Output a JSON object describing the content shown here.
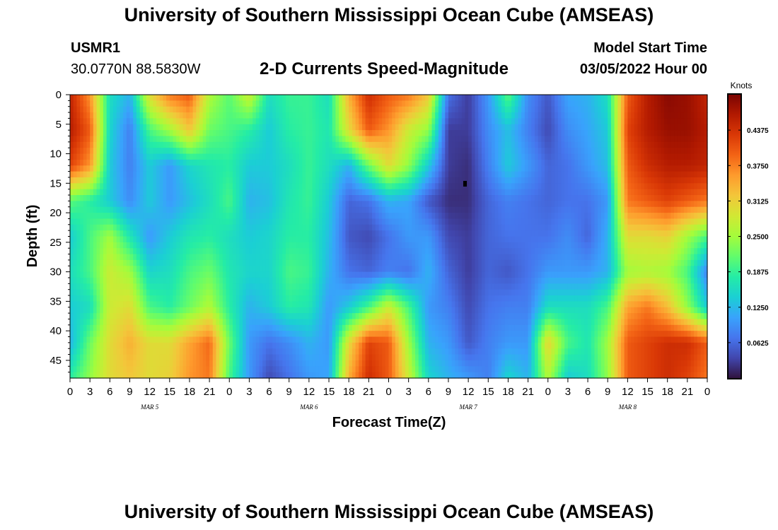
{
  "header": {
    "title": "University of Southern Mississippi Ocean Cube (AMSEAS)",
    "station_id": "USMR1",
    "location": "30.0770N  88.5830W",
    "subtitle": "2-D Currents Speed-Magnitude",
    "model_start_label": "Model Start Time",
    "model_start_value": "03/05/2022 Hour 00"
  },
  "footer": {
    "title": "University of Southern Mississippi Ocean Cube (AMSEAS)"
  },
  "colors": {
    "cmap": [
      "#30123b",
      "#4145ab",
      "#4675ed",
      "#39a2fc",
      "#1bcfd4",
      "#24eca6",
      "#61fc6c",
      "#a4fc3b",
      "#d1e834",
      "#f3c63a",
      "#fe9b2d",
      "#f36315",
      "#d93806",
      "#b11901",
      "#7a0402"
    ]
  },
  "chart_data": {
    "type": "heatmap",
    "title": "2-D Currents Speed-Magnitude",
    "xlabel": "Forecast Time(Z)",
    "ylabel": "Depth (ft)",
    "x_hours": [
      0,
      96
    ],
    "y_depth_ft": [
      0,
      48
    ],
    "vmin": 0.0,
    "vmax": 0.5,
    "x_ticks": [
      "0",
      "3",
      "6",
      "9",
      "12",
      "15",
      "18",
      "21",
      "0",
      "3",
      "6",
      "9",
      "12",
      "15",
      "18",
      "21",
      "0",
      "3",
      "6",
      "9",
      "12",
      "15",
      "18",
      "21",
      "0",
      "3",
      "6",
      "9",
      "12",
      "15",
      "18",
      "21",
      "0"
    ],
    "day_labels": [
      {
        "hour": 12,
        "label": "MAR 5"
      },
      {
        "hour": 36,
        "label": "MAR 6"
      },
      {
        "hour": 60,
        "label": "MAR 7"
      },
      {
        "hour": 84,
        "label": "MAR 8"
      }
    ],
    "y_ticks": [
      0,
      5,
      10,
      15,
      20,
      25,
      30,
      35,
      40,
      45
    ],
    "colorbar": {
      "label": "Knots",
      "ticks": [
        "0.0625",
        "0.1250",
        "0.1875",
        "0.2500",
        "0.3125",
        "0.3750",
        "0.4375"
      ]
    },
    "grid_depths_ft": [
      0,
      6,
      12,
      18,
      24,
      30,
      36,
      42,
      48
    ],
    "grid_hours": [
      0,
      3,
      6,
      9,
      12,
      15,
      18,
      21,
      24,
      27,
      30,
      33,
      36,
      39,
      42,
      45,
      48,
      51,
      54,
      57,
      60,
      63,
      66,
      69,
      72,
      75,
      78,
      81,
      84,
      87,
      90,
      93,
      96
    ],
    "speed_knots": [
      [
        0.45,
        0.36,
        0.16,
        0.12,
        0.3,
        0.38,
        0.4,
        0.26,
        0.21,
        0.28,
        0.16,
        0.19,
        0.19,
        0.16,
        0.34,
        0.44,
        0.4,
        0.38,
        0.32,
        0.07,
        0.03,
        0.1,
        0.21,
        0.09,
        0.05,
        0.11,
        0.12,
        0.16,
        0.4,
        0.46,
        0.49,
        0.48,
        0.45
      ],
      [
        0.46,
        0.4,
        0.15,
        0.08,
        0.2,
        0.25,
        0.32,
        0.22,
        0.2,
        0.18,
        0.14,
        0.18,
        0.19,
        0.17,
        0.3,
        0.4,
        0.36,
        0.28,
        0.24,
        0.03,
        0.03,
        0.09,
        0.13,
        0.08,
        0.04,
        0.09,
        0.11,
        0.14,
        0.42,
        0.46,
        0.48,
        0.48,
        0.46
      ],
      [
        0.42,
        0.36,
        0.14,
        0.08,
        0.14,
        0.1,
        0.15,
        0.17,
        0.18,
        0.14,
        0.14,
        0.16,
        0.19,
        0.16,
        0.12,
        0.22,
        0.3,
        0.24,
        0.14,
        0.03,
        0.02,
        0.08,
        0.14,
        0.1,
        0.06,
        0.07,
        0.1,
        0.13,
        0.4,
        0.44,
        0.46,
        0.46,
        0.45
      ],
      [
        0.21,
        0.18,
        0.14,
        0.09,
        0.14,
        0.1,
        0.13,
        0.16,
        0.2,
        0.12,
        0.13,
        0.17,
        0.19,
        0.14,
        0.06,
        0.07,
        0.12,
        0.11,
        0.05,
        0.02,
        0.02,
        0.06,
        0.08,
        0.07,
        0.06,
        0.07,
        0.07,
        0.1,
        0.38,
        0.4,
        0.42,
        0.4,
        0.38
      ],
      [
        0.14,
        0.2,
        0.25,
        0.17,
        0.1,
        0.14,
        0.17,
        0.18,
        0.16,
        0.14,
        0.15,
        0.18,
        0.18,
        0.13,
        0.05,
        0.04,
        0.07,
        0.1,
        0.1,
        0.04,
        0.03,
        0.06,
        0.07,
        0.07,
        0.07,
        0.09,
        0.06,
        0.12,
        0.3,
        0.3,
        0.31,
        0.25,
        0.2
      ],
      [
        0.16,
        0.2,
        0.28,
        0.25,
        0.15,
        0.16,
        0.2,
        0.22,
        0.17,
        0.15,
        0.15,
        0.2,
        0.19,
        0.12,
        0.07,
        0.06,
        0.08,
        0.07,
        0.12,
        0.06,
        0.03,
        0.06,
        0.05,
        0.07,
        0.1,
        0.1,
        0.1,
        0.12,
        0.25,
        0.26,
        0.25,
        0.2,
        0.08
      ],
      [
        0.14,
        0.16,
        0.28,
        0.3,
        0.2,
        0.18,
        0.22,
        0.26,
        0.18,
        0.12,
        0.14,
        0.18,
        0.17,
        0.1,
        0.14,
        0.2,
        0.28,
        0.2,
        0.1,
        0.08,
        0.04,
        0.07,
        0.08,
        0.08,
        0.16,
        0.16,
        0.16,
        0.2,
        0.35,
        0.38,
        0.33,
        0.24,
        0.14
      ],
      [
        0.12,
        0.22,
        0.3,
        0.34,
        0.3,
        0.3,
        0.35,
        0.39,
        0.22,
        0.1,
        0.07,
        0.09,
        0.12,
        0.1,
        0.3,
        0.42,
        0.4,
        0.25,
        0.12,
        0.1,
        0.05,
        0.08,
        0.1,
        0.1,
        0.31,
        0.2,
        0.17,
        0.25,
        0.4,
        0.42,
        0.44,
        0.44,
        0.4
      ],
      [
        0.18,
        0.24,
        0.3,
        0.32,
        0.3,
        0.31,
        0.36,
        0.38,
        0.2,
        0.1,
        0.04,
        0.07,
        0.1,
        0.11,
        0.34,
        0.44,
        0.4,
        0.28,
        0.15,
        0.12,
        0.1,
        0.08,
        0.15,
        0.12,
        0.26,
        0.14,
        0.16,
        0.24,
        0.4,
        0.42,
        0.44,
        0.42,
        0.38
      ]
    ]
  }
}
